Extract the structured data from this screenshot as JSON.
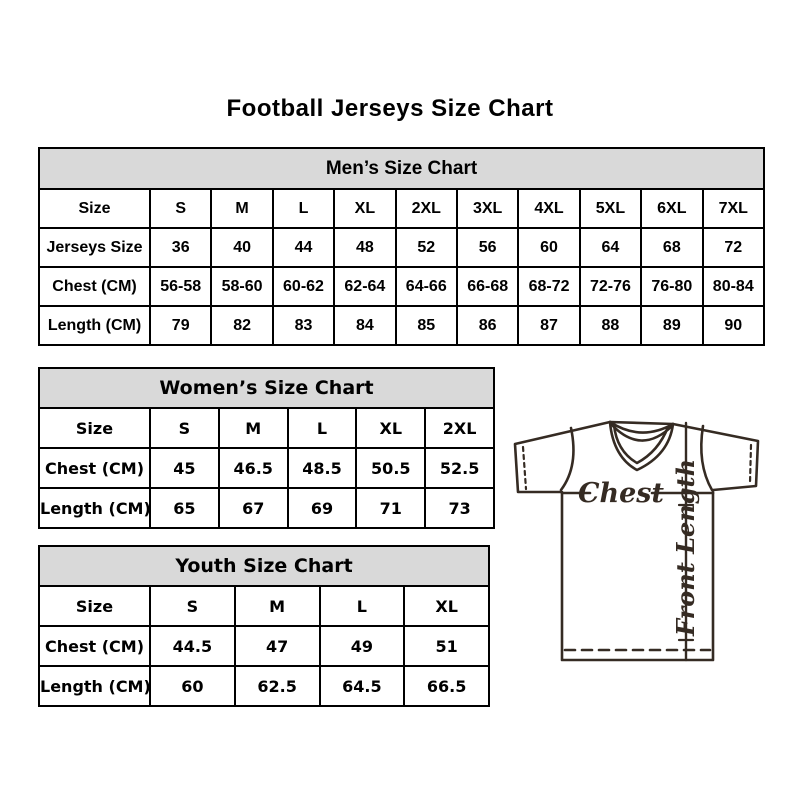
{
  "page_title": "Football Jerseys Size Chart",
  "colors": {
    "header_bg": "#d9d9d9",
    "table_border": "#000000",
    "text": "#000000",
    "diagram_line": "#352b23"
  },
  "diagram": {
    "chest_label": "Chest",
    "front_length_label": "Front Length"
  },
  "chart_data": [
    {
      "type": "table",
      "name": "mens-size-chart",
      "title": "Men’s Size Chart",
      "rows": [
        [
          "Size",
          "S",
          "M",
          "L",
          "XL",
          "2XL",
          "3XL",
          "4XL",
          "5XL",
          "6XL",
          "7XL"
        ],
        [
          "Jerseys Size",
          "36",
          "40",
          "44",
          "48",
          "52",
          "56",
          "60",
          "64",
          "68",
          "72"
        ],
        [
          "Chest (CM)",
          "56-58",
          "58-60",
          "60-62",
          "62-64",
          "64-66",
          "66-68",
          "68-72",
          "72-76",
          "76-80",
          "80-84"
        ],
        [
          "Length (CM)",
          "79",
          "82",
          "83",
          "84",
          "85",
          "86",
          "87",
          "88",
          "89",
          "90"
        ]
      ]
    },
    {
      "type": "table",
      "name": "womens-size-chart",
      "title": "Women’s Size Chart",
      "rows": [
        [
          "Size",
          "S",
          "M",
          "L",
          "XL",
          "2XL"
        ],
        [
          "Chest (CM)",
          "45",
          "46.5",
          "48.5",
          "50.5",
          "52.5"
        ],
        [
          "Length (CM)",
          "65",
          "67",
          "69",
          "71",
          "73"
        ]
      ]
    },
    {
      "type": "table",
      "name": "youth-size-chart",
      "title": "Youth Size Chart",
      "rows": [
        [
          "Size",
          "S",
          "M",
          "L",
          "XL"
        ],
        [
          "Chest (CM)",
          "44.5",
          "47",
          "49",
          "51"
        ],
        [
          "Length (CM)",
          "60",
          "62.5",
          "64.5",
          "66.5"
        ]
      ]
    }
  ]
}
